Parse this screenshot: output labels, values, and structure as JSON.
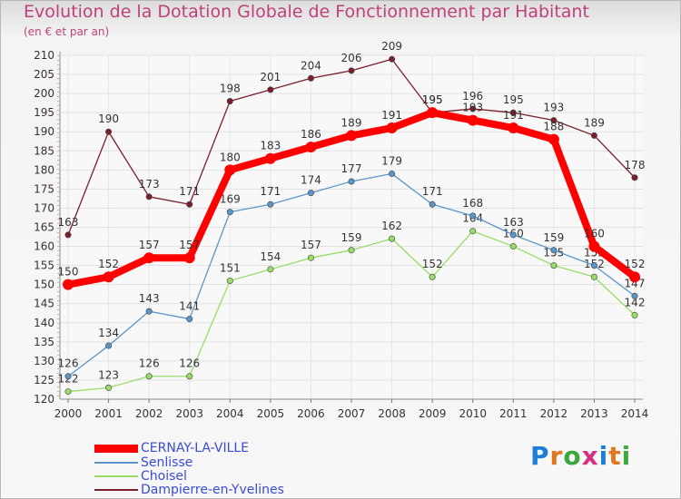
{
  "chart_data": {
    "type": "line",
    "title": "Evolution de la Dotation Globale de Fonctionnement par Habitant",
    "subtitle": "(en € et par an)",
    "xlabel": "",
    "ylabel": "",
    "ylim": [
      120,
      210
    ],
    "ytick_step": 5,
    "grid": true,
    "x": [
      "2000",
      "2001",
      "2002",
      "2003",
      "2004",
      "2005",
      "2006",
      "2007",
      "2008",
      "2009",
      "2010",
      "2011",
      "2012",
      "2013",
      "2014"
    ],
    "series": [
      {
        "name": "Dampierre-en-Yvelines",
        "color": "#7a1f2b",
        "values": [
          163,
          190,
          173,
          171,
          198,
          201,
          204,
          206,
          209,
          195,
          196,
          195,
          193,
          189,
          178
        ]
      },
      {
        "name": "Choisel",
        "color": "#99dd66",
        "values": [
          122,
          123,
          126,
          126,
          151,
          154,
          157,
          159,
          162,
          152,
          164,
          160,
          155,
          152,
          142
        ]
      },
      {
        "name": "Senlisse",
        "color": "#5a96c8",
        "values": [
          126,
          134,
          143,
          141,
          169,
          171,
          174,
          177,
          179,
          171,
          168,
          163,
          159,
          155,
          147
        ]
      },
      {
        "name": "CERNAY-LA-VILLE",
        "color": "#ff0000",
        "values": [
          150,
          152,
          157,
          157,
          180,
          183,
          186,
          189,
          191,
          195,
          193,
          191,
          188,
          160,
          152
        ]
      }
    ],
    "legend_order": [
      "CERNAY-LA-VILLE",
      "Senlisse",
      "Choisel",
      "Dampierre-en-Yvelines"
    ],
    "legend_position": "bottom-left"
  },
  "brand": {
    "text": "Proxiti",
    "letter_colors": [
      "#1f7fd8",
      "#e07820",
      "#3aa83a",
      "#d82f80",
      "#1f7fd8",
      "#e07820",
      "#3aa83a"
    ]
  }
}
